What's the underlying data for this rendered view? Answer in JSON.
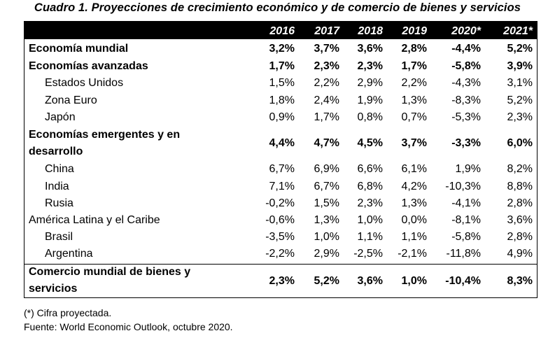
{
  "title": "Cuadro 1. Proyecciones de crecimiento económico y de comercio de bienes y servicios",
  "years": [
    "2016",
    "2017",
    "2018",
    "2019",
    "2020*",
    "2021*"
  ],
  "rows": [
    {
      "label": "Economía mundial",
      "values": [
        "3,2%",
        "3,7%",
        "3,6%",
        "2,8%",
        "-4,4%",
        "5,2%"
      ]
    },
    {
      "label": "Economías avanzadas",
      "values": [
        "1,7%",
        "2,3%",
        "2,3%",
        "1,7%",
        "-5,8%",
        "3,9%"
      ]
    },
    {
      "label": "Estados Unidos",
      "values": [
        "1,5%",
        "2,2%",
        "2,9%",
        "2,2%",
        "-4,3%",
        "3,1%"
      ]
    },
    {
      "label": "Zona Euro",
      "values": [
        "1,8%",
        "2,4%",
        "1,9%",
        "1,3%",
        "-8,3%",
        "5,2%"
      ]
    },
    {
      "label": "Japón",
      "values": [
        "0,9%",
        "1,7%",
        "0,8%",
        "0,7%",
        "-5,3%",
        "2,3%"
      ]
    },
    {
      "label_line1": "Economías emergentes y en",
      "label_line2": "desarrollo",
      "values": [
        "4,4%",
        "4,7%",
        "4,5%",
        "3,7%",
        "-3,3%",
        "6,0%"
      ]
    },
    {
      "label": "China",
      "values": [
        "6,7%",
        "6,9%",
        "6,6%",
        "6,1%",
        "1,9%",
        "8,2%"
      ]
    },
    {
      "label": "India",
      "values": [
        "7,1%",
        "6,7%",
        "6,8%",
        "4,2%",
        "-10,3%",
        "8,8%"
      ]
    },
    {
      "label": "Rusia",
      "values": [
        "-0,2%",
        "1,5%",
        "2,3%",
        "1,3%",
        "-4,1%",
        "2,8%"
      ]
    },
    {
      "label": "América Latina y el Caribe",
      "values": [
        "-0,6%",
        "1,3%",
        "1,0%",
        "0,0%",
        "-8,1%",
        "3,6%"
      ]
    },
    {
      "label": "Brasil",
      "values": [
        "-3,5%",
        "1,0%",
        "1,1%",
        "1,1%",
        "-5,8%",
        "2,8%"
      ]
    },
    {
      "label": "Argentina",
      "values": [
        "-2,2%",
        "2,9%",
        "-2,5%",
        "-2,1%",
        "-11,8%",
        "4,9%"
      ]
    },
    {
      "label_line1": "Comercio mundial de bienes y",
      "label_line2": "servicios",
      "values": [
        "2,3%",
        "5,2%",
        "3,6%",
        "1,0%",
        "-10,4%",
        "8,3%"
      ]
    }
  ],
  "footnotes": {
    "note": "(*) Cifra proyectada.",
    "source": "Fuente: World Economic Outlook, octubre 2020."
  }
}
